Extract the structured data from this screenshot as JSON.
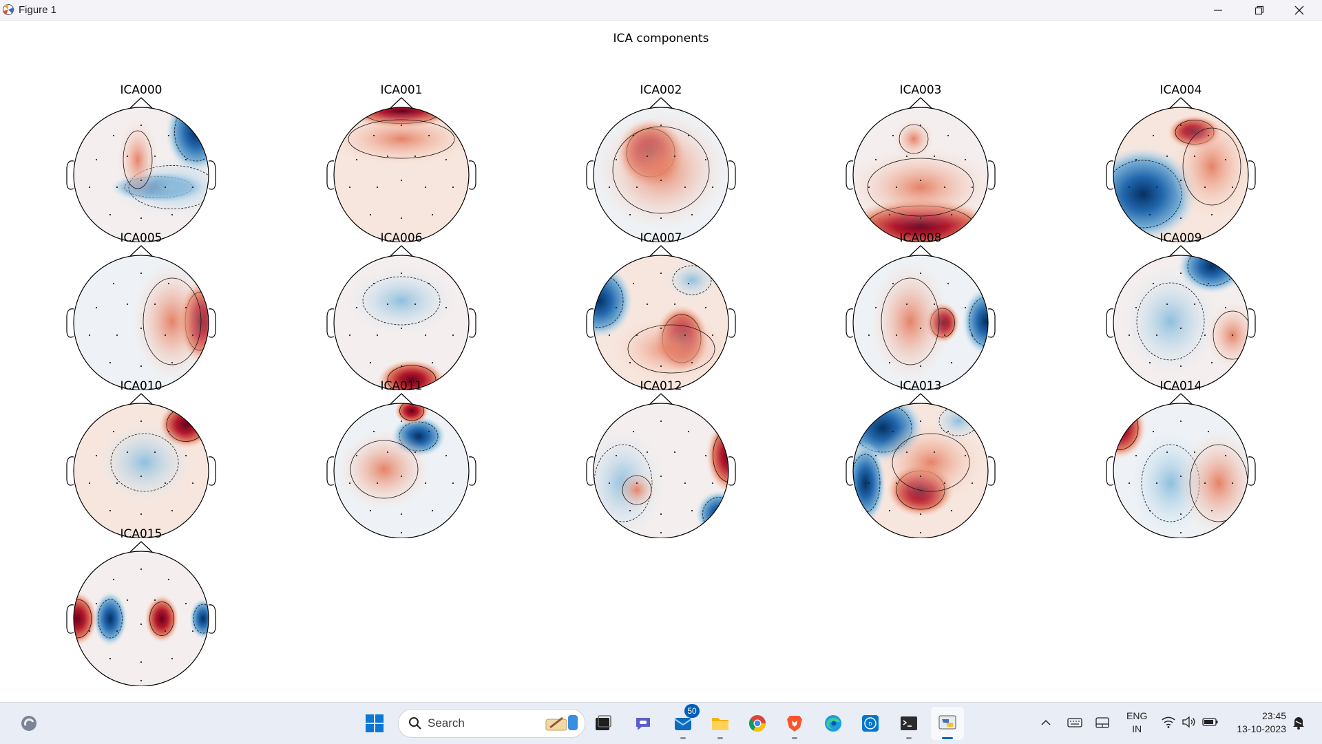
{
  "window": {
    "title": "Figure 1",
    "app_icon": "matplotlib-icon",
    "controls": [
      "minimize-icon",
      "restore-icon",
      "close-icon"
    ]
  },
  "figure": {
    "title": "ICA components",
    "colormap": "RdBu_r diverging (red positive, blue negative)",
    "components": [
      {
        "label": "ICA000"
      },
      {
        "label": "ICA001"
      },
      {
        "label": "ICA002"
      },
      {
        "label": "ICA003"
      },
      {
        "label": "ICA004"
      },
      {
        "label": "ICA005"
      },
      {
        "label": "ICA006"
      },
      {
        "label": "ICA007"
      },
      {
        "label": "ICA008"
      },
      {
        "label": "ICA009"
      },
      {
        "label": "ICA010"
      },
      {
        "label": "ICA011"
      },
      {
        "label": "ICA012"
      },
      {
        "label": "ICA013"
      },
      {
        "label": "ICA014"
      },
      {
        "label": "ICA015"
      }
    ]
  },
  "taskbar": {
    "widgets_icon": "weather-widget-icon",
    "search_placeholder": "Search",
    "pinned": [
      {
        "name": "start-button",
        "icon": "windows-logo-icon"
      },
      {
        "name": "task-view-button",
        "icon": "task-view-icon"
      },
      {
        "name": "teams-button",
        "icon": "chat-icon"
      },
      {
        "name": "outlook-button",
        "icon": "mail-icon",
        "badge": "50"
      },
      {
        "name": "file-explorer-button",
        "icon": "folder-icon"
      },
      {
        "name": "chrome-button",
        "icon": "chrome-icon"
      },
      {
        "name": "brave-button",
        "icon": "brave-icon"
      },
      {
        "name": "edge-button",
        "icon": "edge-icon"
      },
      {
        "name": "dell-button",
        "icon": "dell-icon"
      },
      {
        "name": "terminal-button",
        "icon": "terminal-icon"
      },
      {
        "name": "python-button",
        "icon": "python-figure-icon"
      }
    ],
    "tray": {
      "chevron_icon": "chevron-up-icon",
      "keyboard_icon": "keyboard-icon",
      "tablet_icon": "touchpad-icon",
      "language_line1": "ENG",
      "language_line2": "IN",
      "wifi_icon": "wifi-icon",
      "volume_icon": "volume-icon",
      "battery_icon": "battery-icon",
      "time": "23:45",
      "date": "13-10-2023",
      "notification_icon": "notification-bell-icon"
    }
  }
}
